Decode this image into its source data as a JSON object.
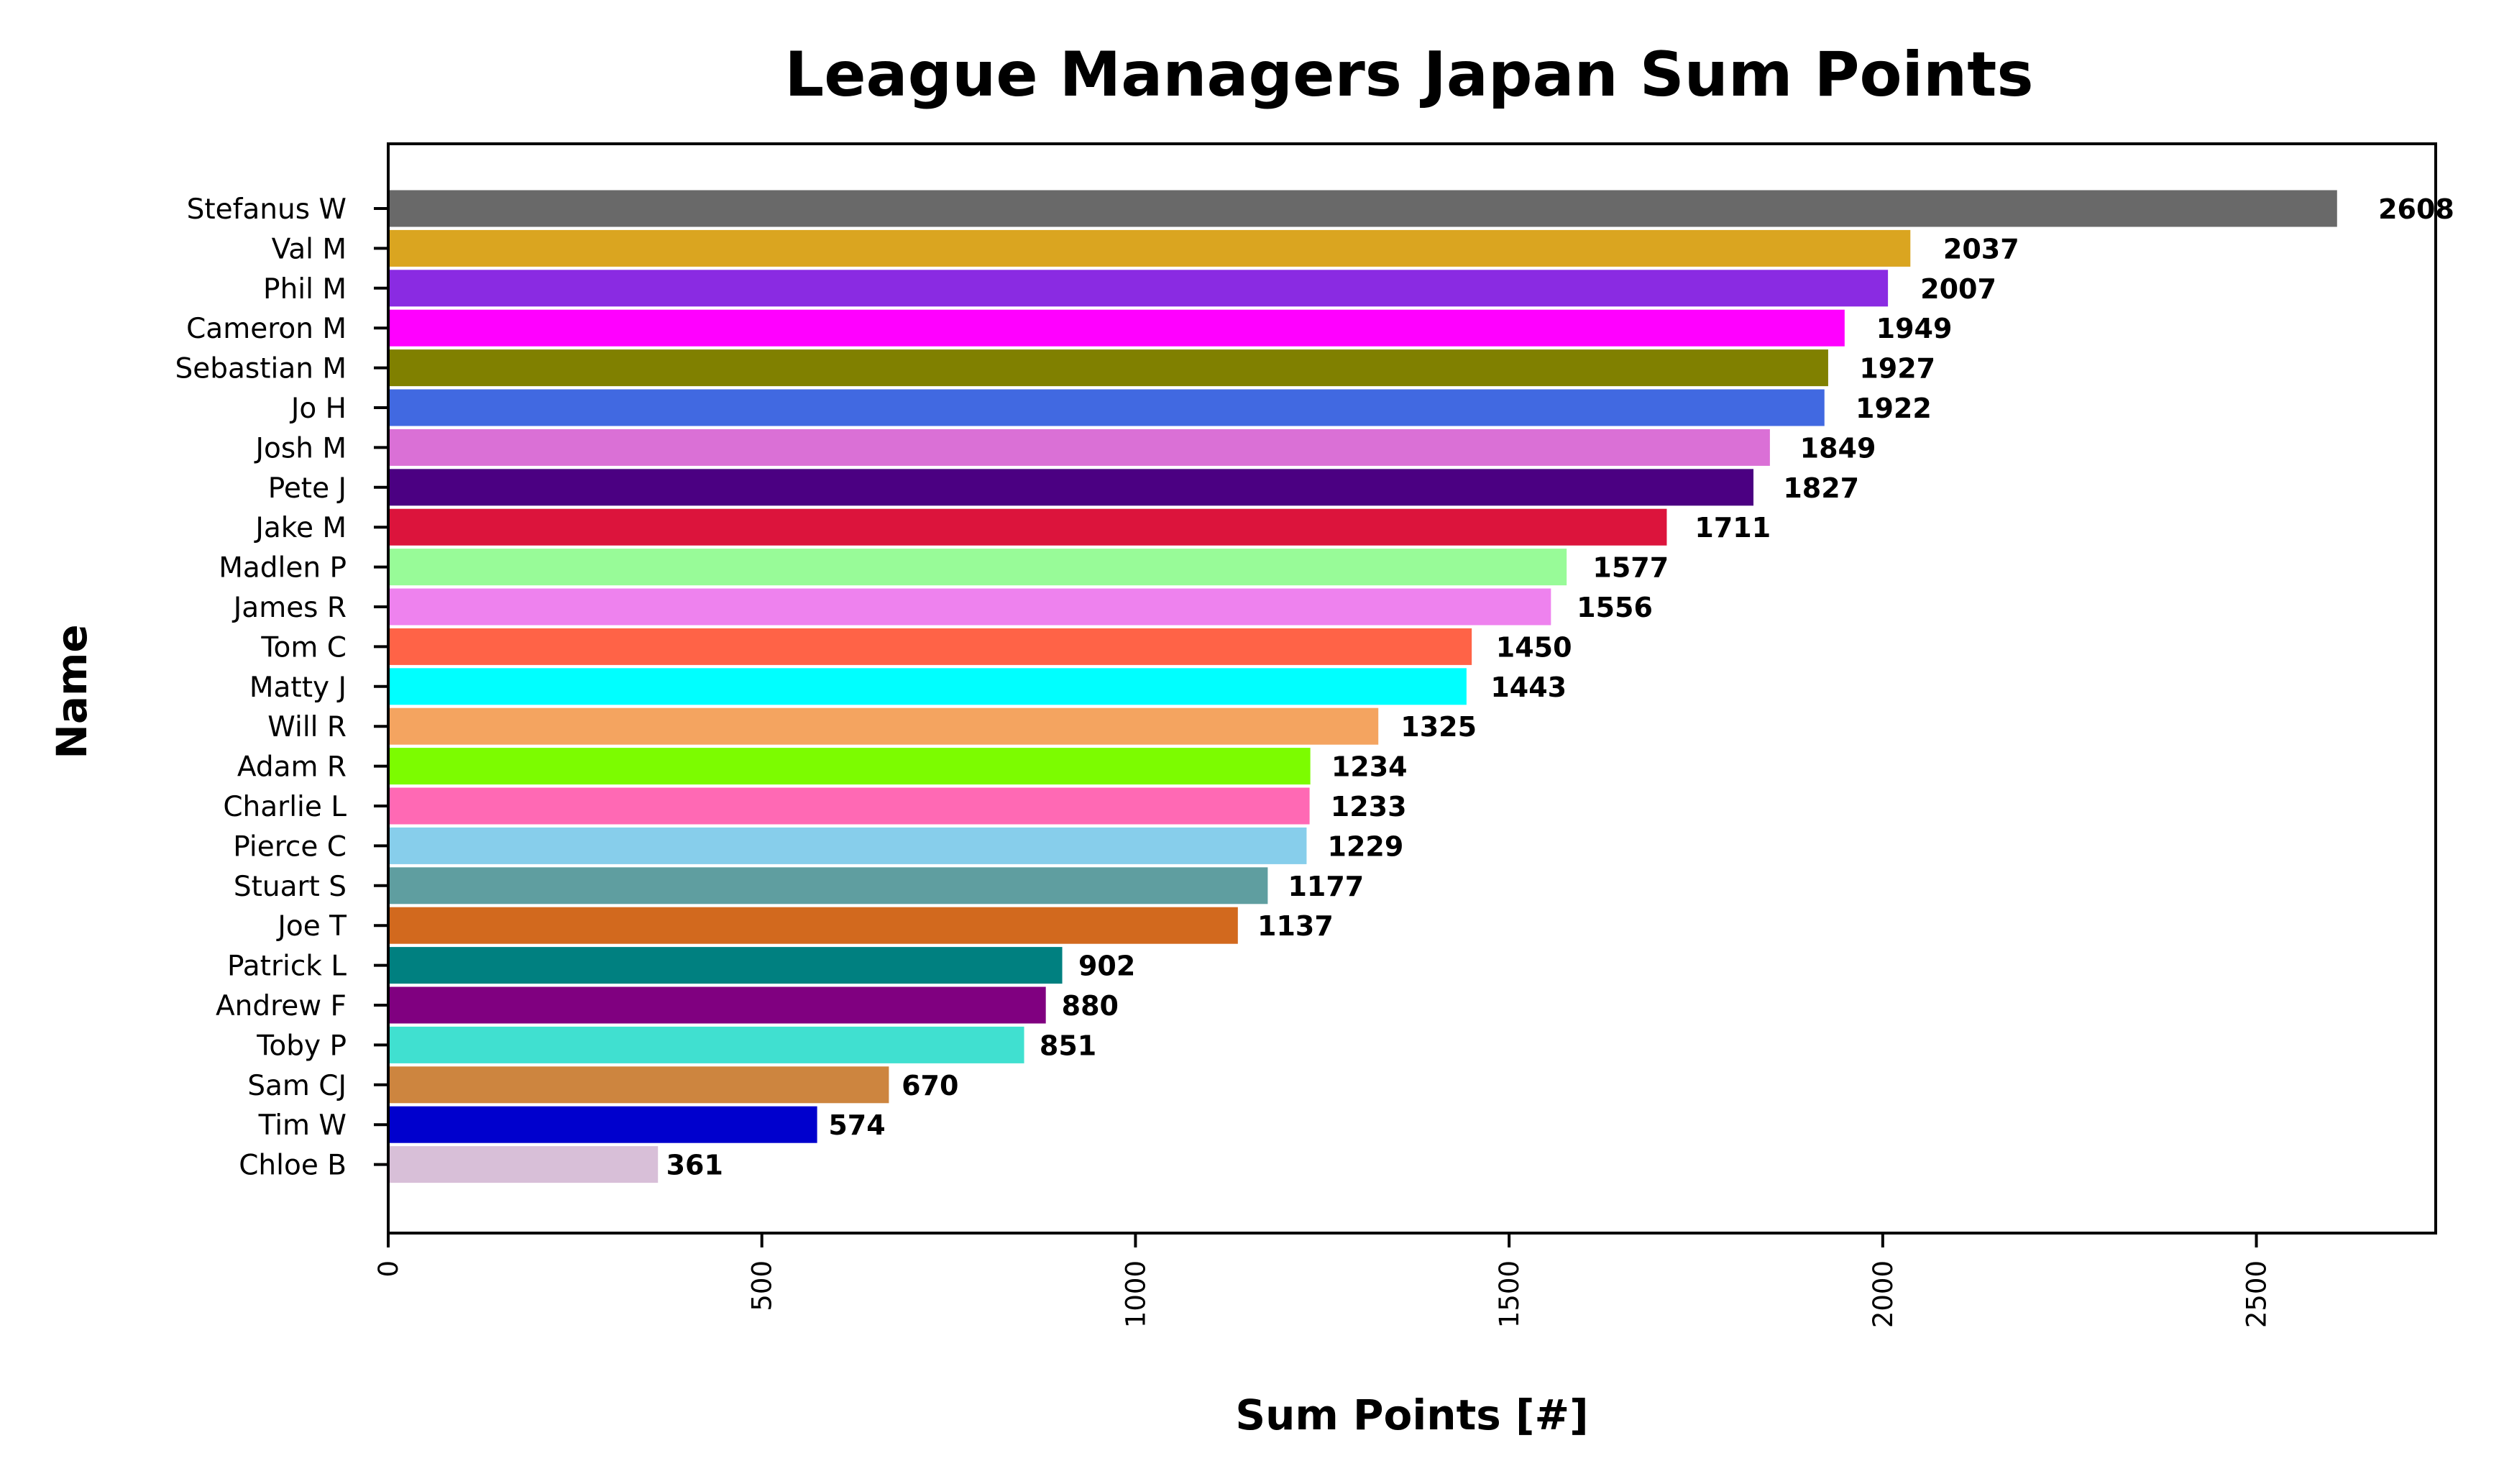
{
  "chart_data": {
    "type": "bar",
    "orientation": "horizontal",
    "title": "League Managers Japan Sum Points",
    "xlabel": "Sum Points [#]",
    "ylabel": "Name",
    "xlim": [
      0,
      2740
    ],
    "xticks": [
      0,
      500,
      1000,
      1500,
      2000,
      2500
    ],
    "grid": false,
    "categories": [
      "Stefanus W",
      "Val M",
      "Phil M",
      "Cameron M",
      "Sebastian M",
      "Jo H",
      "Josh M",
      "Pete J",
      "Jake M",
      "Madlen P",
      "James R",
      "Tom C",
      "Matty J",
      "Will R",
      "Adam R",
      "Charlie L",
      "Pierce C",
      "Stuart S",
      "Joe T",
      "Patrick L",
      "Andrew F",
      "Toby P",
      "Sam CJ",
      "Tim W",
      "Chloe B"
    ],
    "values": [
      2608,
      2037,
      2007,
      1949,
      1927,
      1922,
      1849,
      1827,
      1711,
      1577,
      1556,
      1450,
      1443,
      1325,
      1234,
      1233,
      1229,
      1177,
      1137,
      902,
      880,
      851,
      670,
      574,
      361
    ],
    "colors": [
      "#696969",
      "#daa520",
      "#8a2be2",
      "#ff00ff",
      "#808000",
      "#4169e1",
      "#da70d6",
      "#4b0082",
      "#dc143c",
      "#98fb98",
      "#ee82ee",
      "#ff6347",
      "#00ffff",
      "#f4a460",
      "#7cfc00",
      "#ff69b4",
      "#87ceeb",
      "#5f9ea0",
      "#d2691e",
      "#008080",
      "#800080",
      "#40e0d0",
      "#cd853f",
      "#0000cd",
      "#d8bfd8"
    ]
  }
}
